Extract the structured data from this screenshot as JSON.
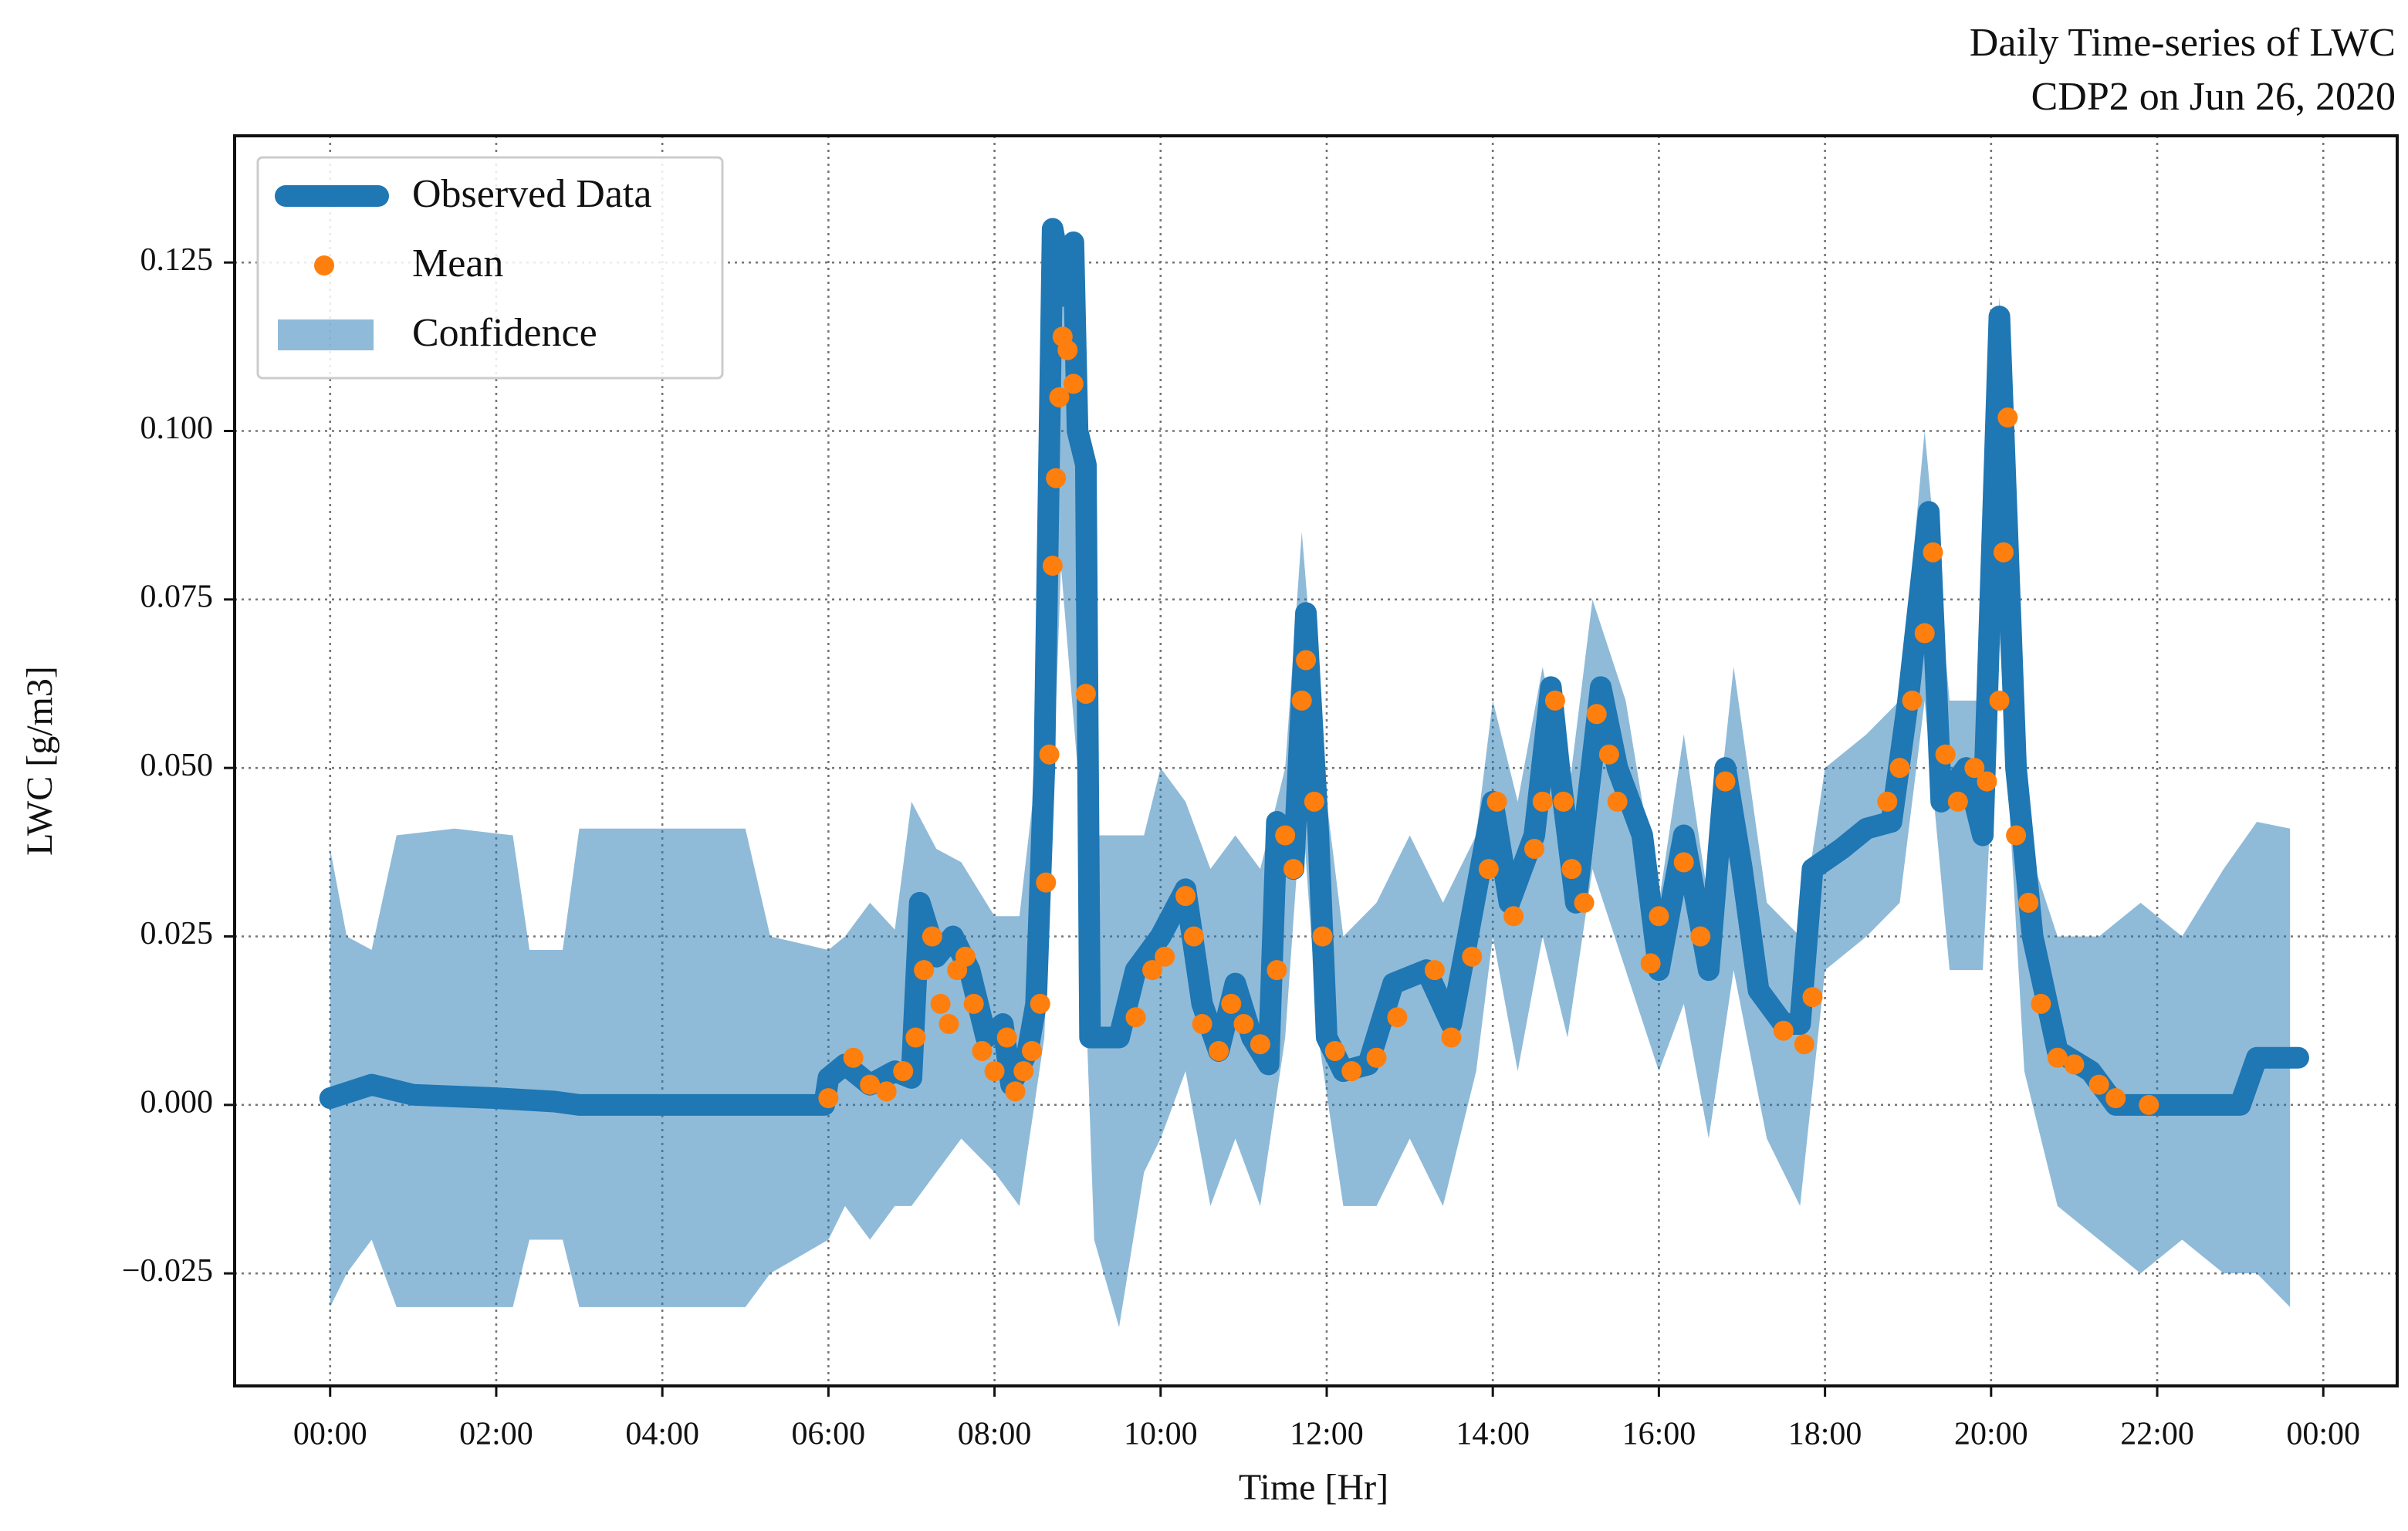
{
  "chart_data": {
    "type": "line",
    "title": "Daily Time-series of LWC",
    "subtitle": "CDP2 on Jun 26, 2020",
    "x_label": "Time [Hr]",
    "y_label": "LWC [g/m3]",
    "xlim": [
      -1.15,
      24.89
    ],
    "ylim": [
      -0.0417,
      0.1438
    ],
    "xticks": [
      {
        "value": 0,
        "label": "00:00"
      },
      {
        "value": 2,
        "label": "02:00"
      },
      {
        "value": 4,
        "label": "04:00"
      },
      {
        "value": 6,
        "label": "06:00"
      },
      {
        "value": 8,
        "label": "08:00"
      },
      {
        "value": 10,
        "label": "10:00"
      },
      {
        "value": 12,
        "label": "12:00"
      },
      {
        "value": 14,
        "label": "14:00"
      },
      {
        "value": 16,
        "label": "16:00"
      },
      {
        "value": 18,
        "label": "18:00"
      },
      {
        "value": 20,
        "label": "20:00"
      },
      {
        "value": 22,
        "label": "22:00"
      },
      {
        "value": 24,
        "label": "00:00"
      }
    ],
    "yticks": [
      {
        "value": -0.025,
        "label": "−0.025"
      },
      {
        "value": 0,
        "label": "0.000"
      },
      0.025,
      {
        "value": 0.05,
        "label": "0.050"
      },
      0.075,
      {
        "value": 0.1,
        "label": "0.100"
      },
      0.125
    ],
    "grid": true,
    "legend": "upper left",
    "series": [
      {
        "name": "Observed Data",
        "type": "line",
        "color": "#1f77b4",
        "x": [
          0,
          0.5,
          1,
          2,
          2.7,
          3,
          4,
          5,
          5.95,
          6.0,
          6.2,
          6.5,
          6.8,
          7.0,
          7.1,
          7.3,
          7.5,
          7.7,
          7.9,
          8.1,
          8.2,
          8.4,
          8.5,
          8.6,
          8.7,
          8.85,
          8.95,
          9.0,
          9.1,
          9.15,
          9.5,
          9.7,
          10.0,
          10.3,
          10.5,
          10.7,
          10.9,
          11.1,
          11.3,
          11.4,
          11.6,
          11.75,
          11.9,
          12.0,
          12.2,
          12.5,
          12.8,
          13.2,
          13.5,
          13.7,
          14.0,
          14.2,
          14.5,
          14.7,
          14.8,
          15.0,
          15.3,
          15.5,
          15.8,
          16.0,
          16.3,
          16.6,
          16.8,
          17.0,
          17.2,
          17.5,
          17.7,
          17.85,
          18.2,
          18.5,
          18.8,
          19.0,
          19.25,
          19.4,
          19.7,
          19.9,
          20.1,
          20.3,
          20.5,
          20.8,
          21.2,
          21.5,
          22.5,
          23.0,
          23.2,
          23.7
        ],
        "values": [
          0.001,
          0.003,
          0.0015,
          0.001,
          0.0005,
          0,
          0,
          0,
          0,
          0.004,
          0.006,
          0.003,
          0.005,
          0.004,
          0.03,
          0.022,
          0.025,
          0.02,
          0.01,
          0.012,
          0.003,
          0.008,
          0.015,
          0.05,
          0.13,
          0.12,
          0.128,
          0.1,
          0.095,
          0.01,
          0.01,
          0.02,
          0.025,
          0.032,
          0.015,
          0.008,
          0.018,
          0.01,
          0.006,
          0.042,
          0.035,
          0.073,
          0.04,
          0.01,
          0.005,
          0.006,
          0.018,
          0.02,
          0.012,
          0.025,
          0.045,
          0.03,
          0.04,
          0.062,
          0.05,
          0.03,
          0.062,
          0.05,
          0.04,
          0.02,
          0.04,
          0.02,
          0.05,
          0.035,
          0.017,
          0.012,
          0.012,
          0.035,
          0.038,
          0.041,
          0.042,
          0.06,
          0.088,
          0.045,
          0.05,
          0.04,
          0.117,
          0.05,
          0.025,
          0.008,
          0.005,
          0,
          0,
          0,
          0.007,
          0.007
        ]
      },
      {
        "name": "Mean",
        "type": "scatter",
        "color": "#ff7f0e",
        "x": [
          6.0,
          6.3,
          6.5,
          6.7,
          6.9,
          7.05,
          7.15,
          7.25,
          7.35,
          7.45,
          7.55,
          7.65,
          7.75,
          7.85,
          8.0,
          8.15,
          8.25,
          8.35,
          8.45,
          8.55,
          8.62,
          8.66,
          8.7,
          8.74,
          8.78,
          8.82,
          8.88,
          8.95,
          9.1,
          9.7,
          9.9,
          10.05,
          10.3,
          10.4,
          10.5,
          10.7,
          10.85,
          11.0,
          11.2,
          11.4,
          11.5,
          11.6,
          11.7,
          11.75,
          11.85,
          11.95,
          12.1,
          12.3,
          12.6,
          12.85,
          13.3,
          13.5,
          13.75,
          13.95,
          14.05,
          14.25,
          14.5,
          14.6,
          14.75,
          14.85,
          14.95,
          15.1,
          15.25,
          15.4,
          15.5,
          15.9,
          16.0,
          16.3,
          16.5,
          16.8,
          17.5,
          17.75,
          17.85,
          18.75,
          18.9,
          19.05,
          19.2,
          19.3,
          19.45,
          19.6,
          19.8,
          19.95,
          20.1,
          20.15,
          20.2,
          20.3,
          20.45,
          20.6,
          20.8,
          21.0,
          21.3,
          21.5,
          21.9
        ],
        "values": [
          0.001,
          0.007,
          0.003,
          0.002,
          0.005,
          0.01,
          0.02,
          0.025,
          0.015,
          0.012,
          0.02,
          0.022,
          0.015,
          0.008,
          0.005,
          0.01,
          0.002,
          0.005,
          0.008,
          0.015,
          0.033,
          0.052,
          0.08,
          0.093,
          0.105,
          0.114,
          0.112,
          0.107,
          0.061,
          0.013,
          0.02,
          0.022,
          0.031,
          0.025,
          0.012,
          0.008,
          0.015,
          0.012,
          0.009,
          0.02,
          0.04,
          0.035,
          0.06,
          0.066,
          0.045,
          0.025,
          0.008,
          0.005,
          0.007,
          0.013,
          0.02,
          0.01,
          0.022,
          0.035,
          0.045,
          0.028,
          0.038,
          0.045,
          0.06,
          0.045,
          0.035,
          0.03,
          0.058,
          0.052,
          0.045,
          0.021,
          0.028,
          0.036,
          0.025,
          0.048,
          0.011,
          0.009,
          0.016,
          0.045,
          0.05,
          0.06,
          0.07,
          0.082,
          0.052,
          0.045,
          0.05,
          0.048,
          0.06,
          0.082,
          0.102,
          0.04,
          0.03,
          0.015,
          0.007,
          0.006,
          0.003,
          0.001,
          0
        ]
      },
      {
        "name": "Confidence",
        "type": "band",
        "color": "#1f77b4",
        "opacity": 0.5,
        "x": [
          0,
          0.2,
          0.5,
          0.8,
          1.5,
          2.2,
          2.4,
          2.8,
          3.0,
          5.0,
          5.3,
          6.0,
          6.2,
          6.5,
          6.8,
          7.0,
          7.3,
          7.6,
          8.0,
          8.3,
          8.6,
          8.8,
          9.0,
          9.2,
          9.5,
          9.8,
          10.0,
          10.3,
          10.6,
          10.9,
          11.2,
          11.5,
          11.7,
          11.9,
          12.2,
          12.6,
          13.0,
          13.4,
          13.8,
          14.0,
          14.3,
          14.6,
          14.9,
          15.2,
          15.6,
          16.0,
          16.3,
          16.6,
          16.9,
          17.3,
          17.7,
          18.0,
          18.5,
          18.9,
          19.2,
          19.5,
          19.9,
          20.1,
          20.4,
          20.8,
          21.3,
          21.8,
          22.3,
          22.8,
          23.2,
          23.6
        ],
        "upper": [
          0.038,
          0.025,
          0.023,
          0.04,
          0.041,
          0.04,
          0.023,
          0.023,
          0.041,
          0.041,
          0.025,
          0.023,
          0.025,
          0.03,
          0.026,
          0.045,
          0.038,
          0.036,
          0.028,
          0.028,
          0.06,
          0.13,
          0.12,
          0.04,
          0.04,
          0.04,
          0.05,
          0.045,
          0.035,
          0.04,
          0.035,
          0.05,
          0.085,
          0.055,
          0.025,
          0.03,
          0.04,
          0.03,
          0.04,
          0.06,
          0.045,
          0.065,
          0.045,
          0.075,
          0.06,
          0.03,
          0.055,
          0.03,
          0.065,
          0.03,
          0.025,
          0.05,
          0.055,
          0.06,
          0.1,
          0.06,
          0.06,
          0.12,
          0.04,
          0.025,
          0.025,
          0.03,
          0.025,
          0.035,
          0.042,
          0.041
        ],
        "lower": [
          -0.03,
          -0.025,
          -0.02,
          -0.03,
          -0.03,
          -0.03,
          -0.02,
          -0.02,
          -0.03,
          -0.03,
          -0.025,
          -0.02,
          -0.015,
          -0.02,
          -0.015,
          -0.015,
          -0.01,
          -0.005,
          -0.01,
          -0.015,
          0.01,
          0.08,
          0.05,
          -0.02,
          -0.033,
          -0.01,
          -0.005,
          0.005,
          -0.015,
          -0.005,
          -0.015,
          0.01,
          0.045,
          0.01,
          -0.015,
          -0.015,
          -0.005,
          -0.015,
          0.005,
          0.025,
          0.005,
          0.025,
          0.01,
          0.035,
          0.02,
          0.005,
          0.015,
          -0.005,
          0.02,
          -0.005,
          -0.015,
          0.02,
          0.025,
          0.03,
          0.06,
          0.02,
          0.02,
          0.07,
          0.005,
          -0.015,
          -0.02,
          -0.025,
          -0.02,
          -0.025,
          -0.025,
          -0.03
        ]
      }
    ]
  }
}
